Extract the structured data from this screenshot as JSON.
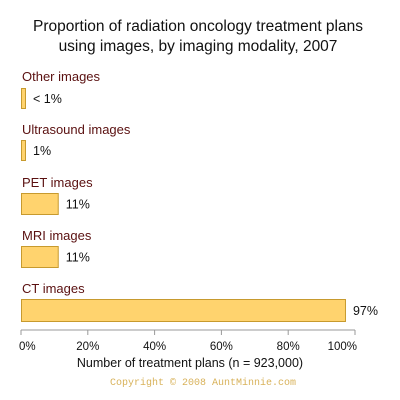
{
  "chart_data": {
    "type": "bar",
    "orientation": "horizontal",
    "title": "Proportion of radiation oncology treatment plans using images, by imaging modality, 2007",
    "title_lines": [
      "Proportion of radiation oncology treatment plans",
      "using images, by imaging modality, 2007"
    ],
    "categories": [
      "Other images",
      "Ultrasound images",
      "PET images",
      "MRI images",
      "CT images"
    ],
    "values": [
      0.5,
      1,
      11,
      11,
      97
    ],
    "value_labels": [
      "< 1%",
      "1%",
      "11%",
      "11%",
      "97%"
    ],
    "xlabel": "Number of treatment plans (n = 923,000)",
    "ylabel": "",
    "xlim": [
      0,
      100
    ],
    "x_ticks": [
      0,
      20,
      40,
      60,
      80,
      100
    ],
    "x_tick_labels": [
      "0%",
      "20%",
      "40%",
      "60%",
      "80%",
      "100%"
    ],
    "grid": false,
    "legend": "none"
  },
  "copyright": "Copyright © 2008 AuntMinnie.com",
  "colors": {
    "bar_fill": "#ffd36e",
    "bar_stroke": "#c79a2e",
    "category_text": "#5a1010",
    "value_text": "#111111",
    "title_text": "#111111",
    "axis_line": "#999999",
    "copyright_text": "#d8b25a"
  }
}
